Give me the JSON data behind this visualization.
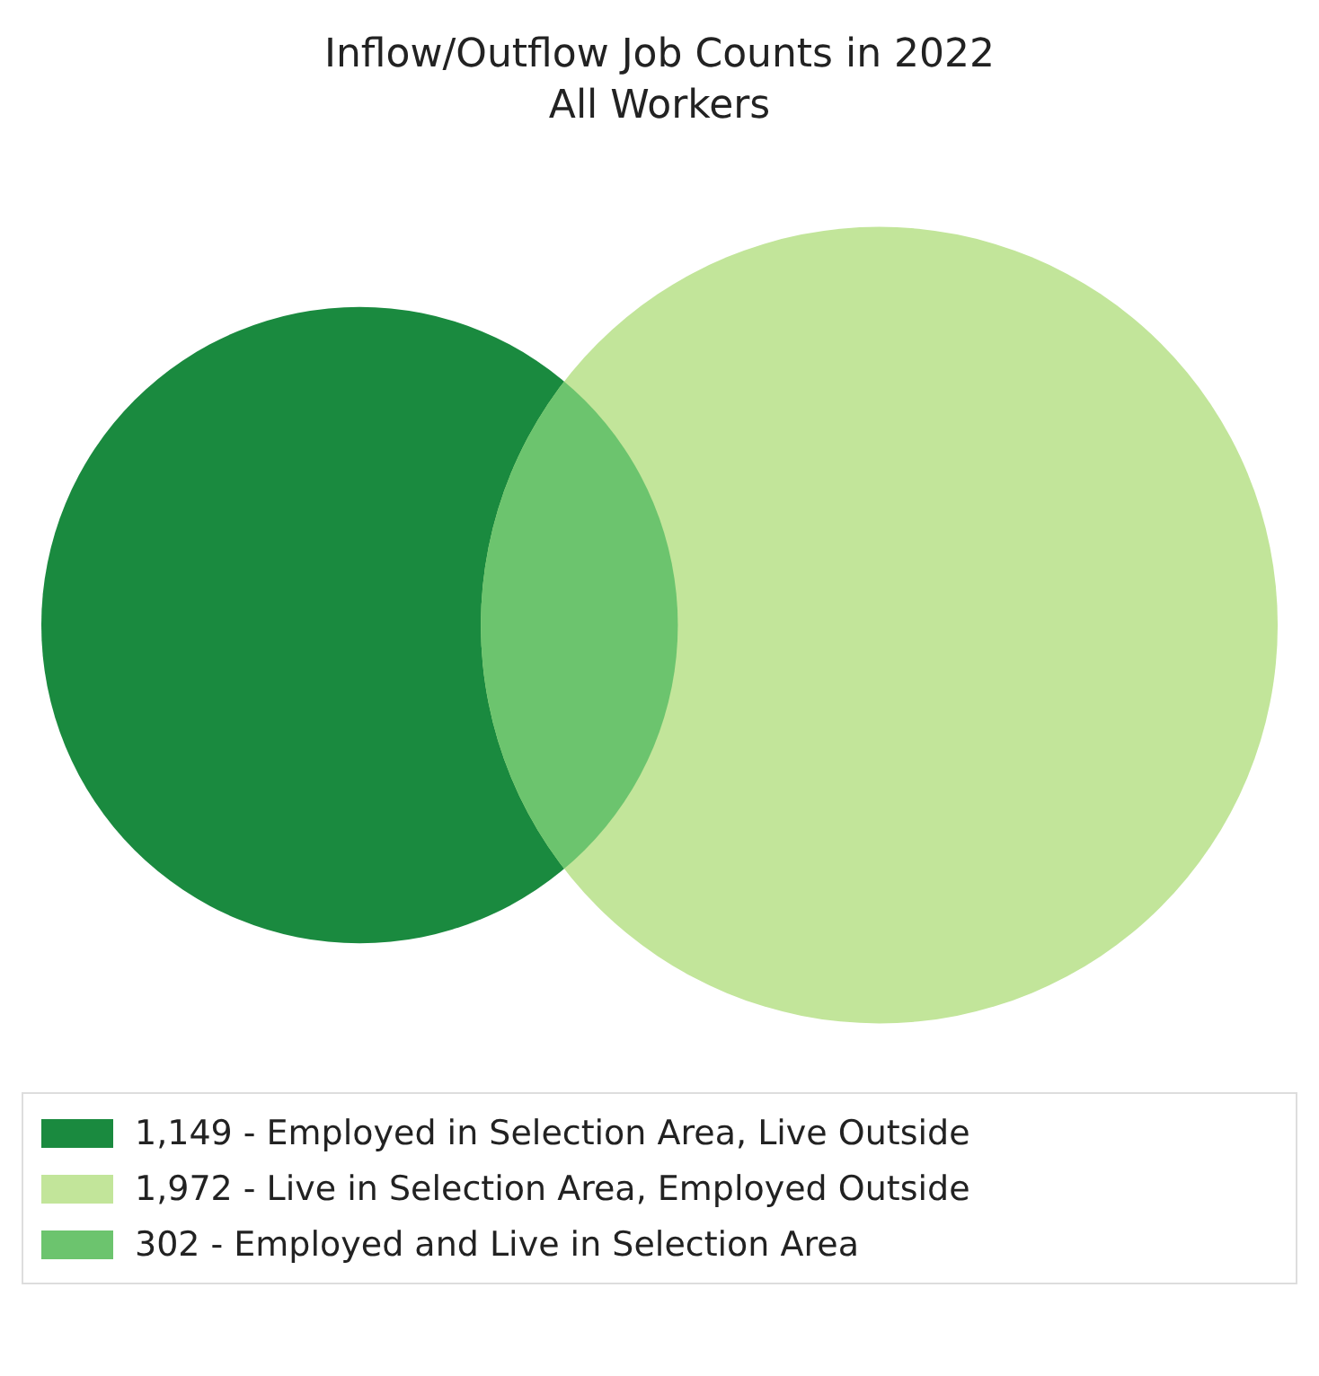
{
  "chart_data": {
    "type": "other",
    "title": "Inflow/Outflow Job Counts in 2022",
    "subtitle": "All Workers",
    "categories": [
      "Employed in Selection Area, Live Outside",
      "Live in Selection Area, Employed Outside",
      "Employed and Live in Selection Area"
    ],
    "values": [
      1149,
      1972,
      302
    ],
    "value_labels": [
      "1,149 -",
      "1,972 -",
      "302 -"
    ],
    "colors": [
      "#1a8a3f",
      "#c2e59a",
      "#6cc46e"
    ]
  }
}
